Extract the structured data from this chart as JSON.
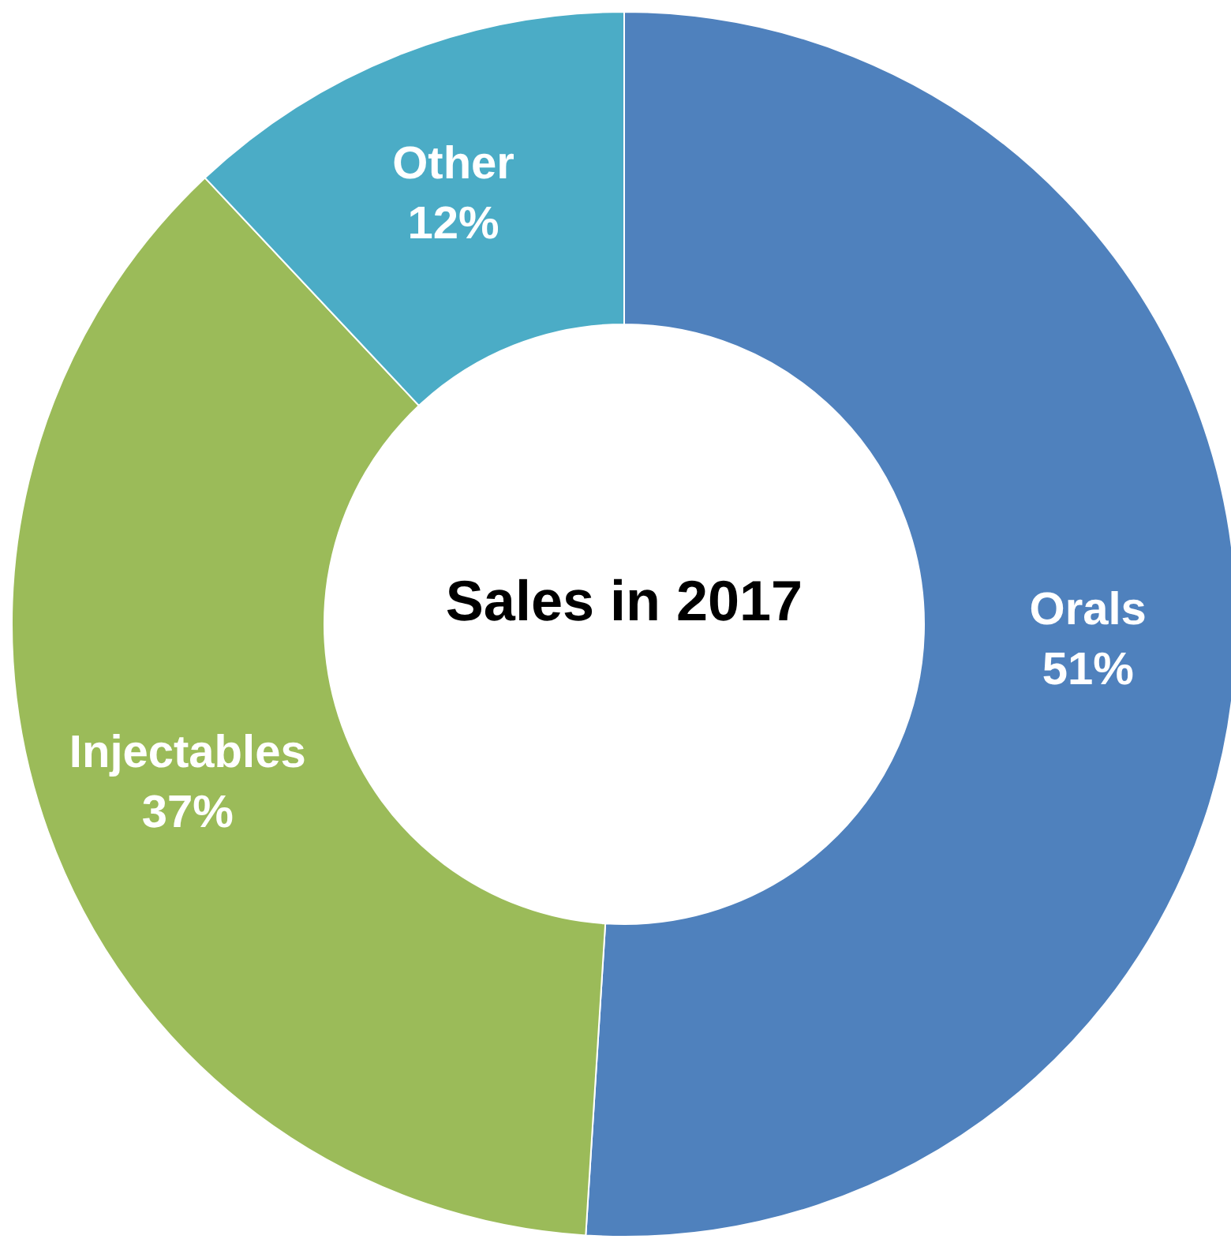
{
  "chart_data": {
    "type": "donut",
    "title": "Sales in 2017",
    "categories": [
      "Orals",
      "Injectables",
      "Other"
    ],
    "values": [
      51,
      37,
      12
    ],
    "colors": [
      "#4f81bd",
      "#9bbb59",
      "#4bacc6"
    ],
    "value_labels": [
      "51%",
      "37%",
      "12%"
    ]
  }
}
